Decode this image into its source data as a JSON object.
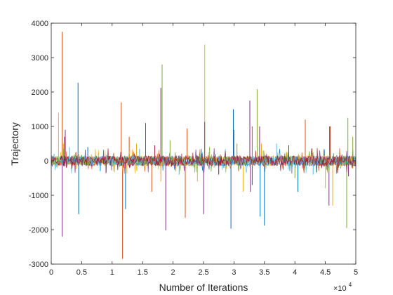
{
  "chart_data": {
    "type": "line",
    "title": "",
    "xlabel": "Number of Iterations",
    "ylabel": "Trajectory",
    "x_exponent_label": "×10",
    "x_exponent_power": "4",
    "xlim": [
      0,
      5
    ],
    "ylim": [
      -3000,
      4000
    ],
    "xticks": [
      "0",
      "0.5",
      "1",
      "1.5",
      "2",
      "2.5",
      "3",
      "3.5",
      "4",
      "4.5",
      "5"
    ],
    "yticks": [
      "-3000",
      "-2000",
      "-1000",
      "0",
      "1000",
      "2000",
      "3000",
      "4000"
    ],
    "xtick_values": [
      0,
      0.5,
      1,
      1.5,
      2,
      2.5,
      3,
      3.5,
      4,
      4.5,
      5
    ],
    "ytick_values": [
      -3000,
      -2000,
      -1000,
      0,
      1000,
      2000,
      3000,
      4000
    ],
    "grid": false,
    "noise_amplitude": 300,
    "series": [
      {
        "color": "#0072BD",
        "spikes": [
          [
            0.44,
            2270
          ],
          [
            0.45,
            -1550
          ],
          [
            0.6,
            400
          ],
          [
            1.22,
            -1400
          ],
          [
            1.55,
            1100
          ],
          [
            2.95,
            -1970
          ],
          [
            2.99,
            1500
          ],
          [
            3.3,
            -700
          ],
          [
            3.43,
            -1620
          ],
          [
            3.5,
            -1880
          ],
          [
            4.05,
            -900
          ],
          [
            4.85,
            -1000
          ]
        ]
      },
      {
        "color": "#D95319",
        "spikes": [
          [
            0.18,
            3750
          ],
          [
            0.25,
            -200
          ],
          [
            1.15,
            1700
          ],
          [
            1.17,
            -2850
          ],
          [
            1.28,
            700
          ],
          [
            1.65,
            -900
          ],
          [
            2.2,
            -1650
          ],
          [
            2.23,
            940
          ],
          [
            3.0,
            900
          ],
          [
            3.3,
            1000
          ],
          [
            4.17,
            1200
          ],
          [
            4.58,
            1000
          ]
        ]
      },
      {
        "color": "#EDB120",
        "spikes": [
          [
            0.12,
            1400
          ],
          [
            0.2,
            500
          ],
          [
            1.4,
            500
          ],
          [
            1.8,
            -600
          ],
          [
            2.52,
            3380
          ],
          [
            2.4,
            -600
          ],
          [
            3.15,
            -900
          ],
          [
            3.45,
            500
          ],
          [
            4.5,
            -800
          ],
          [
            4.62,
            -1300
          ]
        ]
      },
      {
        "color": "#7E2F8E",
        "spikes": [
          [
            0.18,
            -2200
          ],
          [
            0.23,
            900
          ],
          [
            1.8,
            2120
          ],
          [
            1.88,
            -2020
          ],
          [
            2.5,
            -1550
          ],
          [
            2.52,
            1130
          ],
          [
            3.26,
            1750
          ],
          [
            3.27,
            -900
          ],
          [
            3.42,
            1000
          ],
          [
            4.56,
            -1300
          ],
          [
            4.57,
            1000
          ],
          [
            4.88,
            -450
          ]
        ]
      },
      {
        "color": "#77AC30",
        "spikes": [
          [
            0.2,
            350
          ],
          [
            1.82,
            2800
          ],
          [
            1.95,
            600
          ],
          [
            2.6,
            400
          ],
          [
            3.05,
            500
          ],
          [
            3.38,
            2080
          ],
          [
            3.48,
            300
          ],
          [
            4.0,
            -500
          ],
          [
            4.85,
            -1950
          ],
          [
            4.87,
            1250
          ],
          [
            4.95,
            700
          ]
        ]
      },
      {
        "color": "#4DBEEE",
        "spikes": [
          [
            0.3,
            400
          ],
          [
            0.8,
            -300
          ],
          [
            1.45,
            350
          ],
          [
            2.1,
            -400
          ],
          [
            3.7,
            500
          ],
          [
            4.3,
            -400
          ]
        ]
      },
      {
        "color": "#A2142F",
        "spikes": [
          [
            0.22,
            700
          ],
          [
            0.9,
            -350
          ],
          [
            1.7,
            450
          ],
          [
            2.75,
            -400
          ],
          [
            3.9,
            450
          ],
          [
            4.7,
            -350
          ]
        ]
      }
    ]
  }
}
